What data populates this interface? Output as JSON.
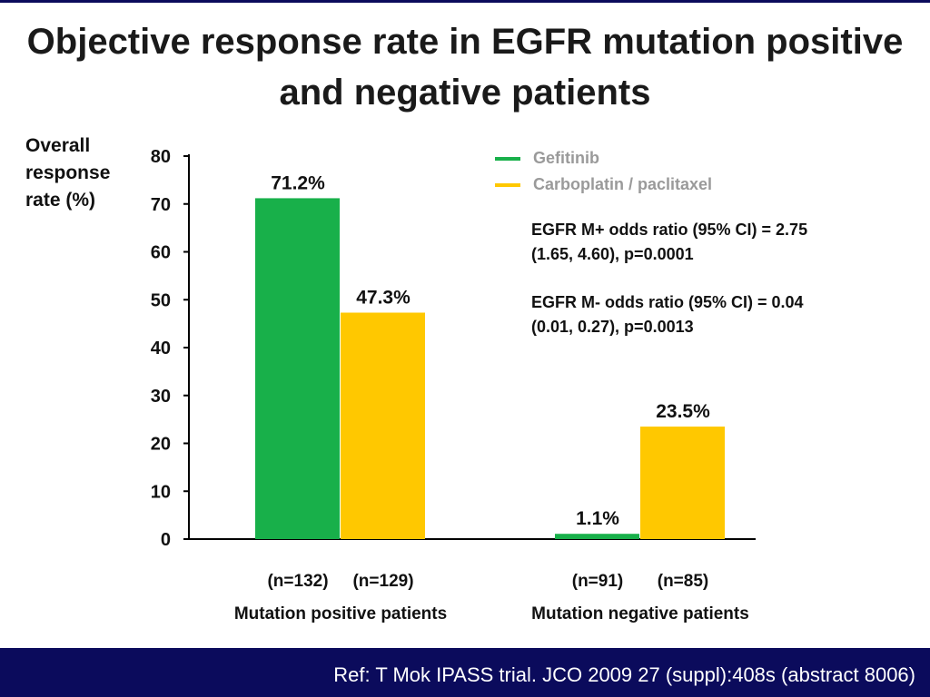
{
  "slide": {
    "title": "Objective response rate in EGFR mutation positive and negative patients",
    "footer_ref": "Ref: T Mok IPASS trial. JCO 2009 27 (suppl):408s (abstract 8006)"
  },
  "annotations": {
    "odds_ratio_pos": "EGFR M+ odds ratio (95% CI) = 2.75\n(1.65, 4.60), p=0.0001",
    "odds_ratio_neg": "EGFR M- odds ratio (95% CI) = 0.04\n(0.01, 0.27), p=0.0013"
  },
  "chart_data": {
    "type": "bar",
    "ylabel": "Overall\nresponse\nrate (%)",
    "ylim": [
      0,
      80
    ],
    "yticks": [
      0,
      10,
      20,
      30,
      40,
      50,
      60,
      70,
      80
    ],
    "grid": false,
    "legend_position": "top-right",
    "categories": [
      "Mutation positive patients",
      "Mutation negative patients"
    ],
    "series": [
      {
        "name": "Gefitinib",
        "color": "#18b04a",
        "values": [
          71.2,
          1.1
        ],
        "data_labels": [
          "71.2%",
          "1.1%"
        ],
        "n_labels": [
          "(n=132)",
          "(n=91)"
        ]
      },
      {
        "name": "Carboplatin / paclitaxel",
        "color": "#ffc800",
        "values": [
          47.3,
          23.5
        ],
        "data_labels": [
          "47.3%",
          "23.5%"
        ],
        "n_labels": [
          "(n=129)",
          "(n=85)"
        ]
      }
    ]
  }
}
